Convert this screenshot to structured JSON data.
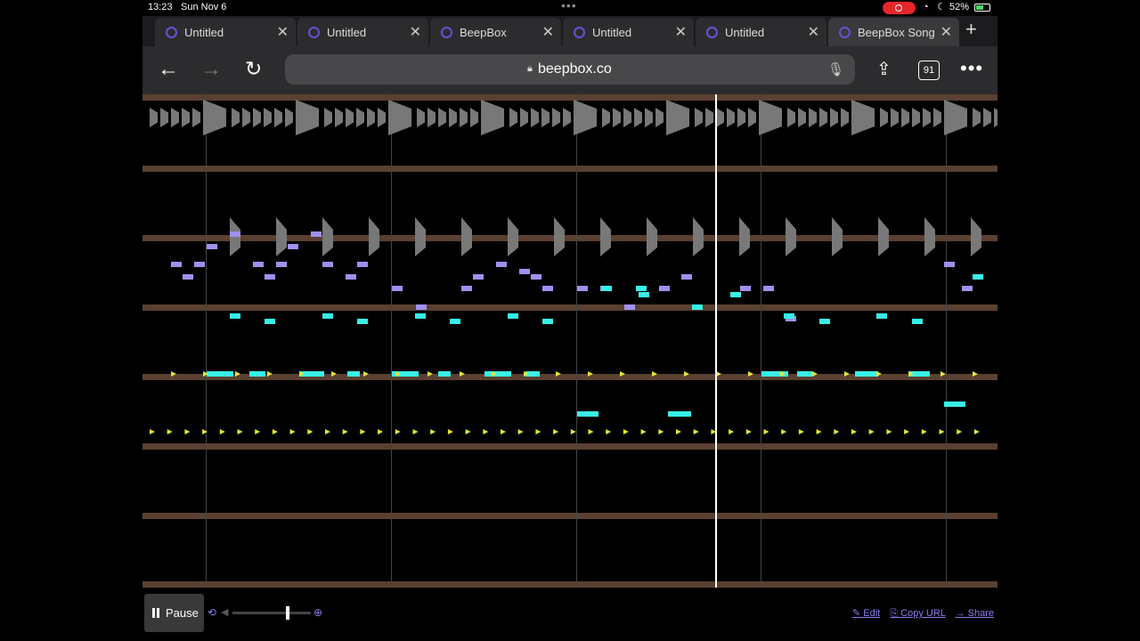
{
  "status": {
    "time": "13:23",
    "date": "Sun Nov 6",
    "battery": "52%"
  },
  "tabs": [
    {
      "label": "Untitled",
      "active": false
    },
    {
      "label": "Untitled",
      "active": false
    },
    {
      "label": "BeepBox",
      "active": false
    },
    {
      "label": "Untitled",
      "active": false
    },
    {
      "label": "Untitled",
      "active": false
    },
    {
      "label": "BeepBox Song",
      "active": true
    }
  ],
  "toolbar": {
    "url": "beepbox.co",
    "tab_count": "91"
  },
  "player": {
    "pause_label": "Pause",
    "volume": 0.72
  },
  "links": {
    "edit": "✎ Edit",
    "copy": "⎘ Copy URL",
    "share": "→ Share"
  },
  "colors": {
    "background": "#000000",
    "staff_line": "#5a4030",
    "drum_mark": "#787878",
    "melody_purple": "#a090f0",
    "melody_cyan": "#37f0e6",
    "arrow_yellow": "#e6e632",
    "playhead": "#ffffff",
    "link_purple": "#8a7ef0"
  },
  "icons": [
    "back-arrow-icon",
    "forward-arrow-icon",
    "reload-icon",
    "lock-icon",
    "microphone-icon",
    "share-icon",
    "tab-count-icon",
    "more-icon",
    "pause-icon",
    "loop-icon",
    "volume-icon",
    "zoom-icon"
  ]
}
